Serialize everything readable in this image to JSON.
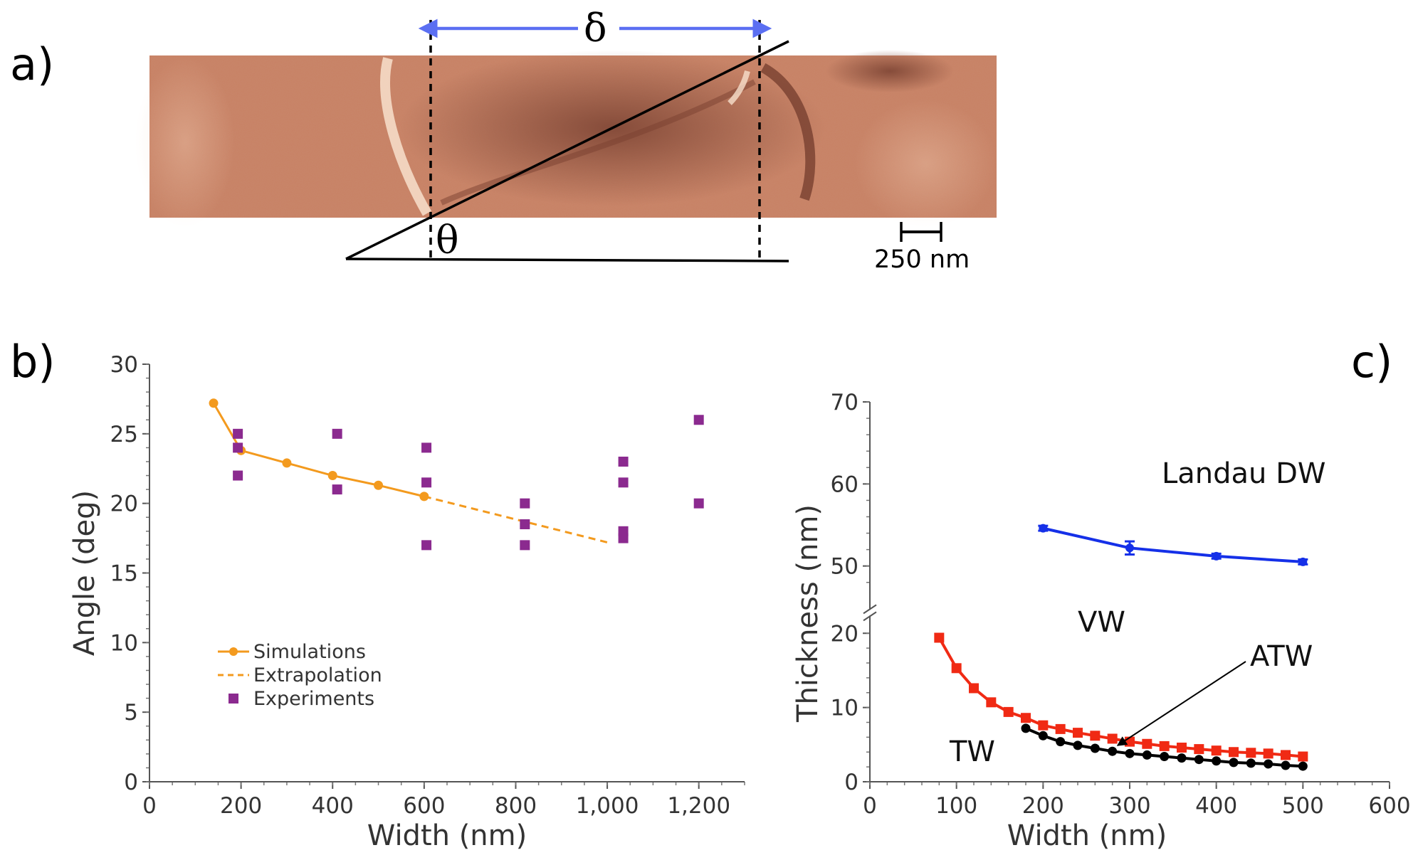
{
  "panels": {
    "a": "a)",
    "b": "b)",
    "c": "c)"
  },
  "panel_a": {
    "delta_symbol": "δ",
    "theta_symbol": "θ",
    "scale_bar_label": "250 nm",
    "colors": {
      "arrow": "#5b6ff2",
      "image_base": "#c97a5a",
      "image_dark": "#8a4a38",
      "image_light": "#f2c4a8"
    }
  },
  "chart_data": [
    {
      "id": "b",
      "type": "line",
      "title": "",
      "xlabel": "Width (nm)",
      "ylabel": "Angle (deg)",
      "xlim": [
        0,
        1300
      ],
      "ylim": [
        0,
        30
      ],
      "xticks": [
        0,
        200,
        400,
        600,
        800,
        1000,
        1200
      ],
      "xtick_labels": [
        "0",
        "200",
        "400",
        "600",
        "800",
        "1,000",
        "1,200"
      ],
      "yticks": [
        0,
        5,
        10,
        15,
        20,
        25,
        30
      ],
      "ytick_labels": [
        "0",
        "5",
        "10",
        "15",
        "20",
        "25",
        "30"
      ],
      "legend_position": "lower-left",
      "series": [
        {
          "name": "Simulations",
          "style": "line-marker",
          "color": "#f39a1e",
          "x": [
            140,
            200,
            300,
            400,
            500,
            600
          ],
          "y": [
            27.2,
            23.8,
            22.9,
            22.0,
            21.3,
            20.5
          ]
        },
        {
          "name": "Extrapolation",
          "style": "dashed",
          "color": "#f39a1e",
          "x": [
            600,
            1000
          ],
          "y": [
            20.5,
            17.2
          ]
        },
        {
          "name": "Experiments",
          "style": "square-marker",
          "color": "#8b2a8f",
          "x": [
            193,
            193,
            193,
            410,
            410,
            605,
            605,
            605,
            820,
            820,
            820,
            1035,
            1035,
            1035,
            1035,
            1200,
            1200
          ],
          "y": [
            25,
            24,
            22,
            25,
            21,
            24,
            21.5,
            17,
            20,
            18.5,
            17,
            23,
            21.5,
            18,
            17.5,
            26,
            20
          ]
        }
      ]
    },
    {
      "id": "c",
      "type": "line",
      "title": "",
      "xlabel": "Width (nm)",
      "ylabel": "Thickness (nm)",
      "xlim": [
        0,
        600
      ],
      "ylim": [
        0,
        70
      ],
      "axis_break": [
        22,
        45
      ],
      "xticks": [
        0,
        100,
        200,
        300,
        400,
        500,
        600
      ],
      "xtick_labels": [
        "0",
        "100",
        "200",
        "300",
        "400",
        "500",
        "600"
      ],
      "yticks": [
        0,
        10,
        20,
        50,
        60,
        70
      ],
      "ytick_labels": [
        "0",
        "10",
        "20",
        "50",
        "60",
        "70"
      ],
      "region_labels": {
        "landau": "Landau DW",
        "vw": "VW",
        "atw": "ATW",
        "tw": "TW"
      },
      "series": [
        {
          "name": "Landau DW",
          "color": "#1530e8",
          "x": [
            200,
            300,
            400,
            500
          ],
          "y": [
            54.6,
            52.2,
            51.2,
            50.5
          ],
          "error": [
            0.3,
            0.8,
            0.3,
            0.3
          ]
        },
        {
          "name": "VW/ATW boundary",
          "color": "#f02a14",
          "x": [
            80,
            100,
            120,
            140,
            160,
            180,
            200,
            220,
            240,
            260,
            280,
            300,
            320,
            340,
            360,
            380,
            400,
            420,
            440,
            460,
            480,
            500
          ],
          "y": [
            19.4,
            15.3,
            12.6,
            10.7,
            9.4,
            8.6,
            7.6,
            7.1,
            6.6,
            6.2,
            5.8,
            5.4,
            5.1,
            4.8,
            4.6,
            4.4,
            4.2,
            4.0,
            3.9,
            3.8,
            3.6,
            3.4
          ]
        },
        {
          "name": "ATW/TW boundary",
          "color": "#000000",
          "x": [
            180,
            200,
            220,
            240,
            260,
            280,
            300,
            320,
            340,
            360,
            380,
            400,
            420,
            440,
            460,
            480,
            500
          ],
          "y": [
            7.2,
            6.2,
            5.4,
            4.9,
            4.5,
            4.1,
            3.8,
            3.6,
            3.4,
            3.2,
            3.0,
            2.8,
            2.6,
            2.5,
            2.4,
            2.2,
            2.1
          ]
        }
      ]
    }
  ]
}
